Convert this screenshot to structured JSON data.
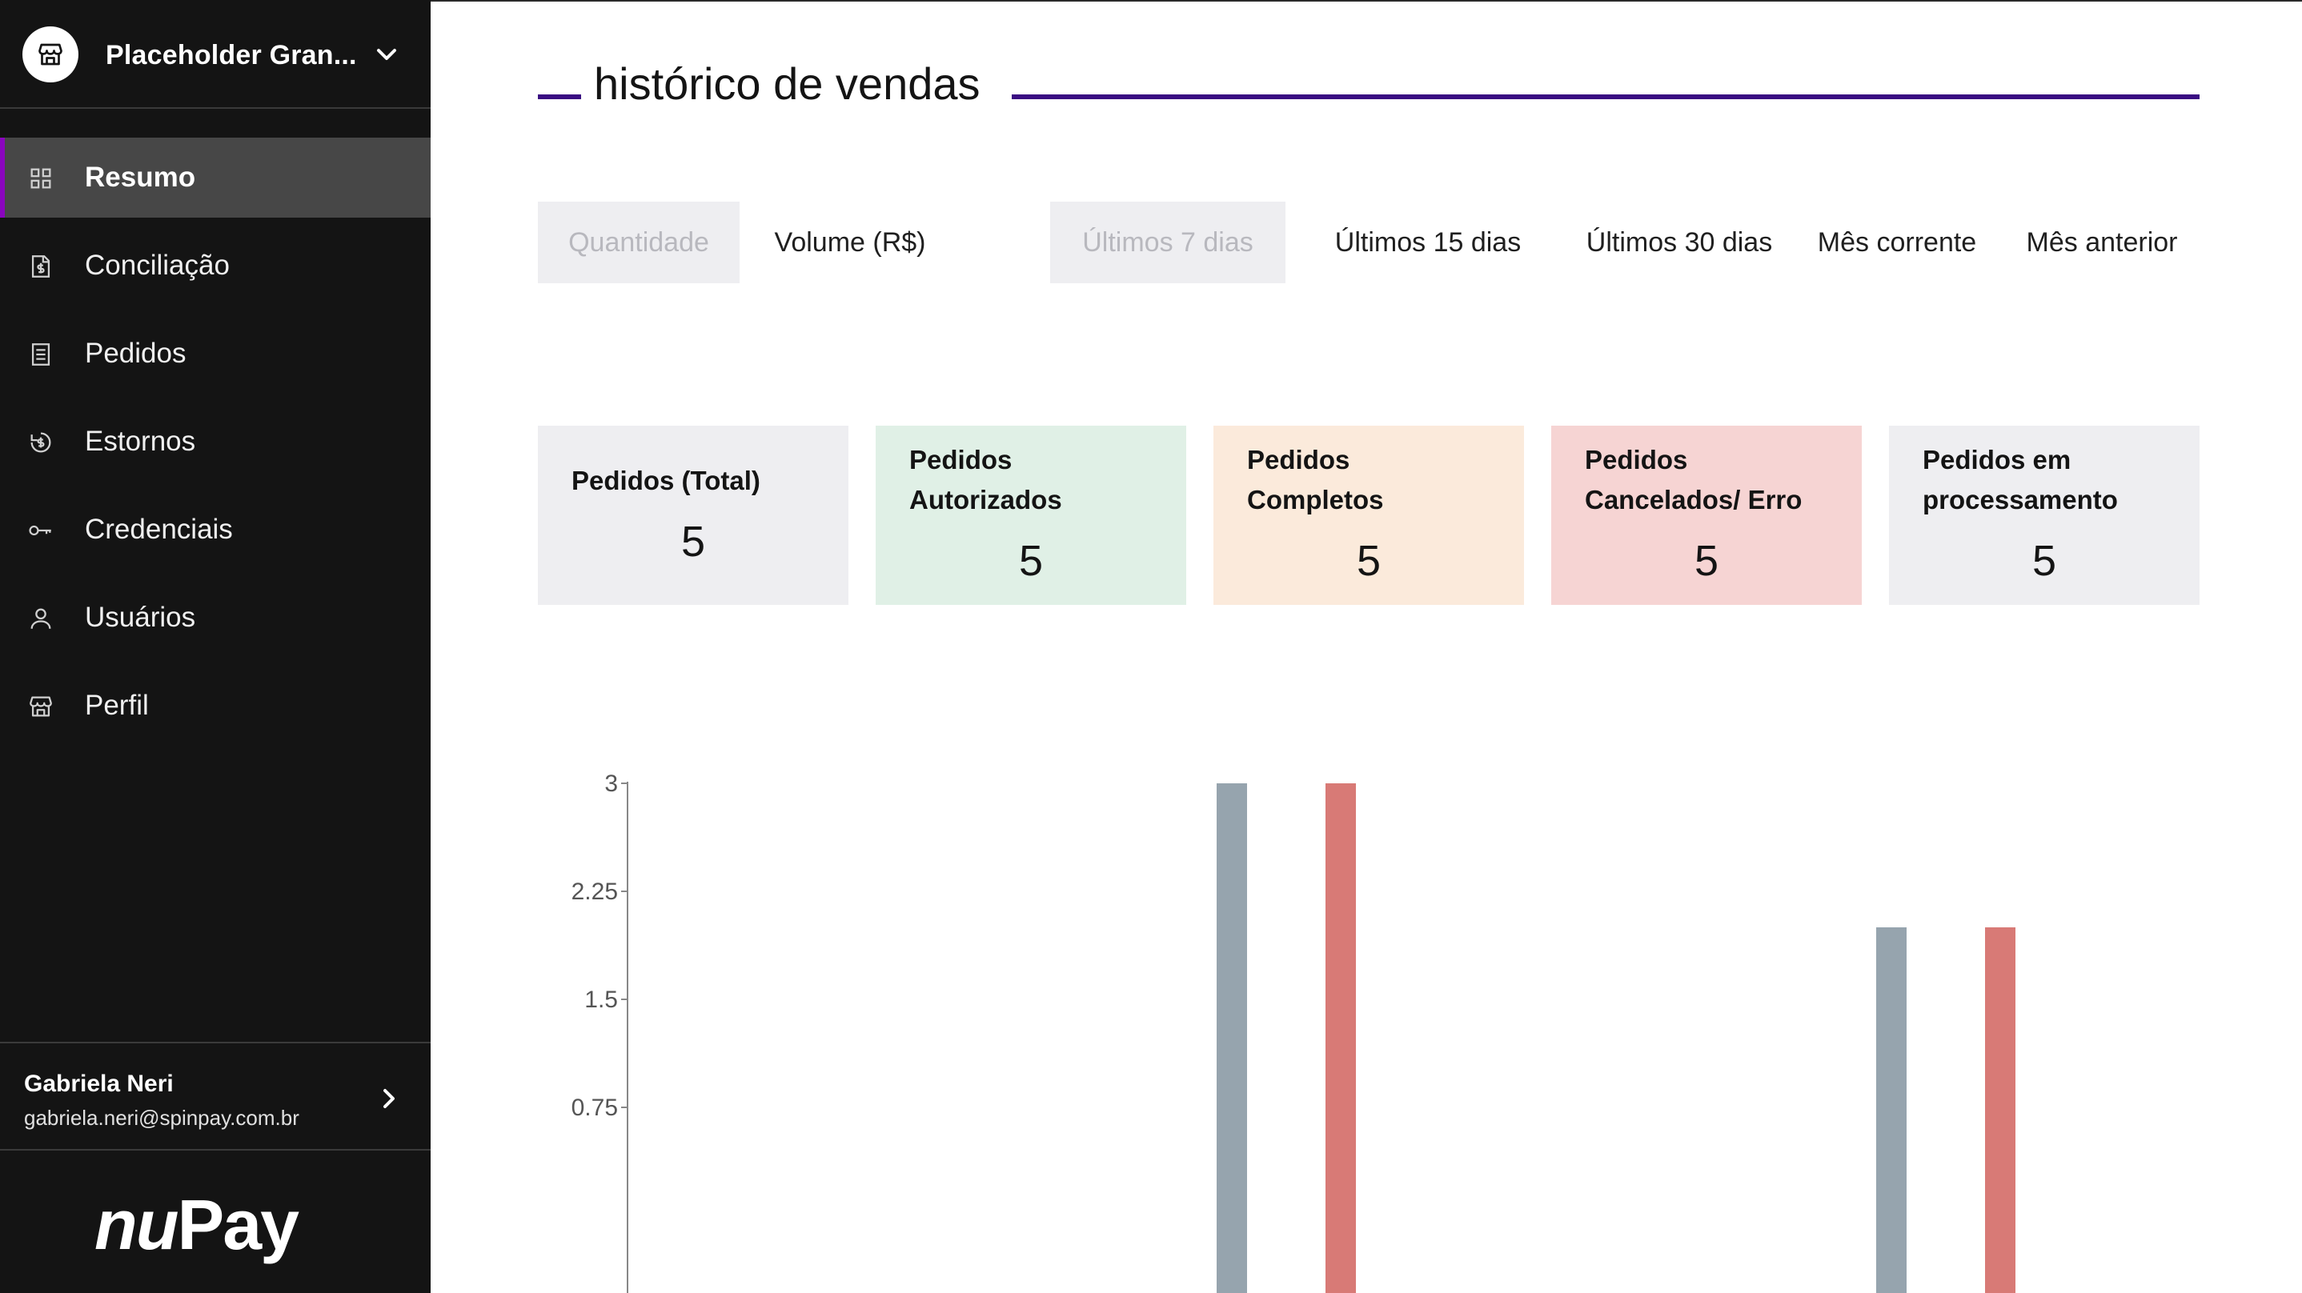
{
  "sidebar": {
    "store": {
      "name": "Placeholder Gran...",
      "icon": "store-icon",
      "chevron": "chevron-down-icon"
    },
    "items": [
      {
        "label": "Resumo",
        "icon": "grid-icon",
        "active": true
      },
      {
        "label": "Conciliação",
        "icon": "document-dollar-icon",
        "active": false
      },
      {
        "label": "Pedidos",
        "icon": "receipt-icon",
        "active": false
      },
      {
        "label": "Estornos",
        "icon": "refund-icon",
        "active": false
      },
      {
        "label": "Credenciais",
        "icon": "key-icon",
        "active": false
      },
      {
        "label": "Usuários",
        "icon": "user-icon",
        "active": false
      },
      {
        "label": "Perfil",
        "icon": "store-icon",
        "active": false
      }
    ],
    "user": {
      "name": "Gabriela Neri",
      "email": "gabriela.neri@spinpay.com.br"
    },
    "logo": {
      "nu": "nu",
      "pay": "Pay"
    }
  },
  "main": {
    "title": "histórico de vendas",
    "metric_toggle": [
      {
        "label": "Quantidade",
        "selected": true
      },
      {
        "label": "Volume (R$)",
        "selected": false
      }
    ],
    "period_toggle": [
      {
        "label": "Últimos 7 dias",
        "selected": true
      },
      {
        "label": "Últimos 15 dias",
        "selected": false
      },
      {
        "label": "Últimos 30 dias",
        "selected": false
      },
      {
        "label": "Mês corrente",
        "selected": false
      },
      {
        "label": "Mês anterior",
        "selected": false
      }
    ],
    "cards": [
      {
        "label": "Pedidos (Total)",
        "value": "5",
        "color": "#eeeef1"
      },
      {
        "label": "Pedidos Autorizados",
        "value": "5",
        "color": "#e0f0e6"
      },
      {
        "label": "Pedidos Completos",
        "value": "5",
        "color": "#fbeadb"
      },
      {
        "label": "Pedidos Cancelados/ Erro",
        "value": "5",
        "color": "#f6d4d3"
      },
      {
        "label": "Pedidos em processamento",
        "value": "5",
        "color": "#eeeef1"
      }
    ]
  },
  "chart_data": {
    "type": "bar",
    "ylim": [
      0,
      3
    ],
    "yticks": [
      "0.75",
      "1.5",
      "2.25",
      "3"
    ],
    "series": [
      {
        "color": "#96a4ae",
        "values": [
          3,
          2
        ]
      },
      {
        "color": "#d87a76",
        "values": [
          3,
          2
        ]
      }
    ],
    "grid": false
  },
  "colors": {
    "accent": "#3a0d82",
    "active_border": "#8a05be",
    "sidebar_bg": "#141414"
  }
}
